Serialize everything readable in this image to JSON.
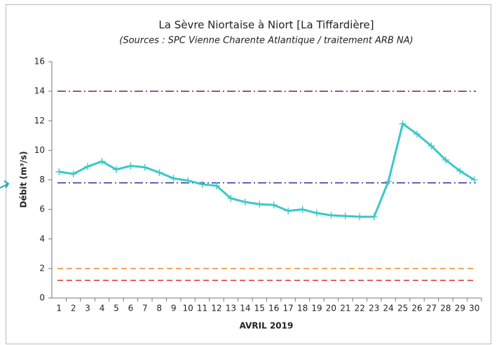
{
  "chart_data": {
    "type": "line",
    "title": "La Sèvre Niortaise à Niort [La Tiffardière]",
    "subtitle": "(Sources : SPC Vienne Charente Atlantique / traitement ARB NA)",
    "x_label": "AVRIL 2019",
    "y_label": "Débit (m³/s)",
    "categories": [
      "1",
      "2",
      "3",
      "4",
      "5",
      "6",
      "7",
      "8",
      "9",
      "10",
      "11",
      "12",
      "13",
      "14",
      "15",
      "16",
      "17",
      "18",
      "19",
      "20",
      "21",
      "22",
      "23",
      "24",
      "25",
      "26",
      "27",
      "28",
      "29",
      "30"
    ],
    "series": [
      {
        "color": "#3cc8c8",
        "values": [
          8.55,
          8.4,
          8.9,
          9.25,
          8.7,
          8.95,
          8.85,
          8.5,
          8.1,
          7.95,
          7.7,
          7.6,
          6.75,
          6.5,
          6.35,
          6.3,
          5.9,
          6.0,
          5.75,
          5.6,
          5.55,
          5.5,
          5.5,
          7.9,
          11.8,
          11.1,
          10.3,
          9.35,
          8.6,
          8.0
        ]
      }
    ],
    "reference_lines": [
      {
        "value": 14,
        "color": "#7a1a6e",
        "style": "dashdot"
      },
      {
        "value": 7.8,
        "color": "#3030b0",
        "style": "dashdot"
      },
      {
        "value": 2,
        "color": "#f08a30",
        "style": "dashed"
      },
      {
        "value": 1.2,
        "color": "#d83030",
        "style": "dashed"
      }
    ],
    "ylim": [
      0,
      16
    ],
    "yticks": [
      0,
      2,
      4,
      6,
      8,
      10,
      12,
      14,
      16
    ],
    "grid": false
  }
}
